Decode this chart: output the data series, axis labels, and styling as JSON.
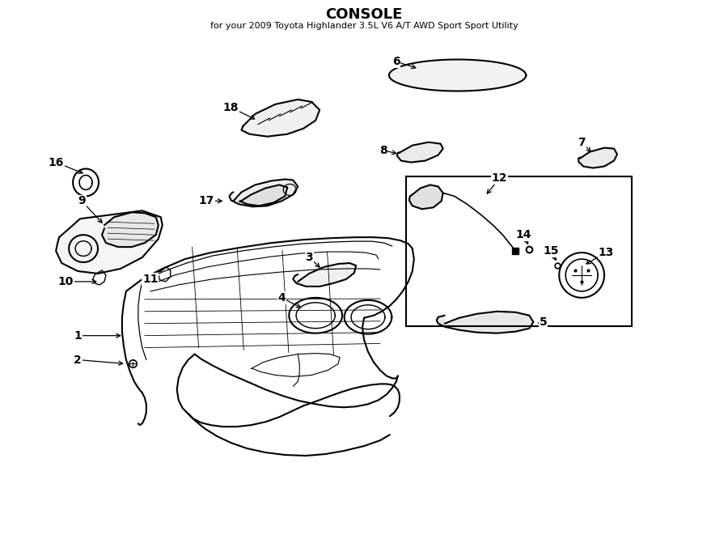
{
  "title": "CONSOLE",
  "subtitle": "for your 2009 Toyota Highlander 3.5L V6 A/T AWD Sport Sport Utility",
  "bg": "#ffffff",
  "lc": "#000000",
  "lw": 1.5,
  "fig_w": 9.0,
  "fig_h": 6.61,
  "dpi": 100
}
